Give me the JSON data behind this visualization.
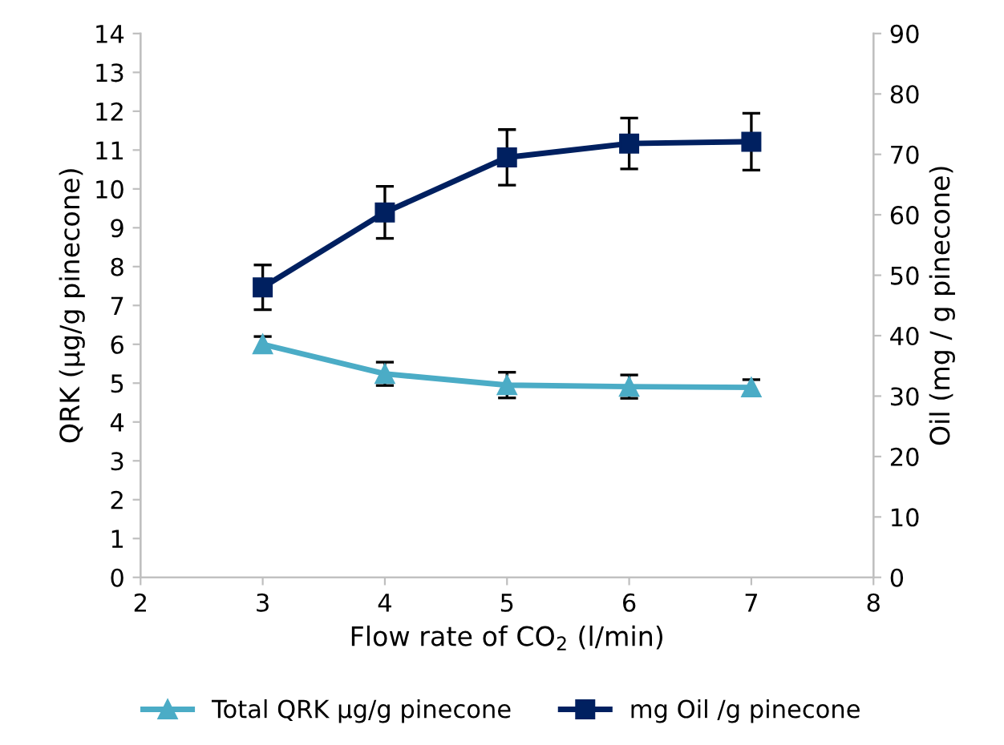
{
  "chart_data": {
    "type": "line",
    "xlabel": "Flow rate of CO$_{2}$ (l/min)",
    "ylabel": "QRK (µg/g pinecone)",
    "y2label": "Oil (mg / g pinecone)",
    "x": [
      3,
      4,
      5,
      6,
      7
    ],
    "xlim": [
      2,
      8
    ],
    "xticks": [
      2,
      3,
      4,
      5,
      6,
      7,
      8
    ],
    "ylim": [
      0,
      14
    ],
    "yticks": [
      0,
      1,
      2,
      3,
      4,
      5,
      6,
      7,
      8,
      9,
      10,
      11,
      12,
      13,
      14
    ],
    "y2lim": [
      0,
      90
    ],
    "y2ticks": [
      0,
      10,
      20,
      30,
      40,
      50,
      60,
      70,
      80,
      90
    ],
    "grid": false,
    "legend": "bottom",
    "line_style": "solid",
    "series": [
      {
        "name": "Total QRK µg/g pinecone",
        "color": "#4bacc6",
        "marker": "triangle",
        "values": [
          6.0,
          5.24,
          4.95,
          4.91,
          4.89
        ],
        "errors": [
          0.2,
          0.3,
          0.33,
          0.3,
          0.2
        ]
      },
      {
        "name": "mg Oil /g pinecone",
        "color": "#002060",
        "marker": "square",
        "axis": "y2",
        "values": [
          48,
          60.4,
          69.5,
          71.8,
          72.1
        ],
        "errors": [
          3.7,
          4.3,
          4.6,
          4.2,
          4.7
        ]
      }
    ]
  }
}
